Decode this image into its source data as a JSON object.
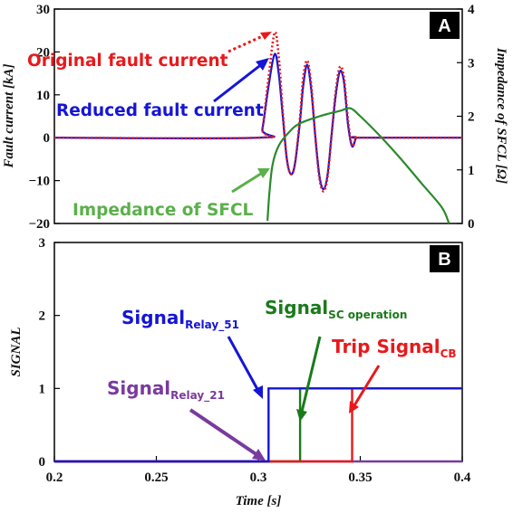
{
  "chart_data": [
    {
      "panel": "A",
      "type": "line",
      "ylabel": "Fault current [kA]",
      "ylabel_right": "Impedance of SFCL [Ω]",
      "xlim": [
        0.2,
        0.4
      ],
      "ylim": [
        -20,
        30
      ],
      "ylim_right": [
        0,
        4
      ],
      "yticks": [
        "30",
        "20",
        "10",
        "0",
        "−10",
        "−20"
      ],
      "yticks_right": [
        "4",
        "3",
        "2",
        "1",
        "0"
      ],
      "annotations": {
        "original": "Original fault current",
        "reduced": "Reduced fault current",
        "impedance": "Impedance of SFCL"
      },
      "series": [
        {
          "name": "Original fault current",
          "color": "#e8191b",
          "style": "dotted",
          "x": [
            0.2,
            0.3,
            0.302,
            0.305,
            0.308,
            0.31,
            0.312,
            0.314,
            0.316,
            0.318,
            0.3205,
            0.322,
            0.324,
            0.326,
            0.328,
            0.33,
            0.332,
            0.334,
            0.336,
            0.338,
            0.34,
            0.342,
            0.344,
            0.346,
            0.348,
            0.35,
            0.4
          ],
          "y": [
            0,
            0,
            2,
            14,
            24.5,
            19,
            6,
            -5,
            -8.5,
            -6,
            5,
            14,
            18,
            12,
            0,
            -9.5,
            -12.5,
            -9,
            1,
            11,
            16.5,
            14,
            4,
            -2,
            0,
            0,
            0
          ]
        },
        {
          "name": "Reduced fault current",
          "color": "#1515d6",
          "style": "solid",
          "x": [
            0.2,
            0.3,
            0.302,
            0.305,
            0.308,
            0.31,
            0.312,
            0.314,
            0.316,
            0.318,
            0.3205,
            0.322,
            0.324,
            0.326,
            0.328,
            0.33,
            0.332,
            0.334,
            0.336,
            0.338,
            0.34,
            0.342,
            0.344,
            0.346,
            0.348,
            0.35,
            0.4
          ],
          "y": [
            0,
            0,
            2,
            12,
            19.5,
            15,
            5,
            -5,
            -8.5,
            -6,
            4,
            12,
            17,
            11,
            0,
            -9,
            -12,
            -8.5,
            1,
            10,
            15.5,
            13,
            3,
            -2,
            0,
            0,
            0
          ]
        },
        {
          "name": "Impedance of SFCL",
          "color": "#2a8a2a",
          "style": "solid",
          "axis": "right",
          "x": [
            0.3045,
            0.3055,
            0.307,
            0.31,
            0.315,
            0.32,
            0.33,
            0.34,
            0.345,
            0.35,
            0.36,
            0.37,
            0.38,
            0.39,
            0.3935
          ],
          "y": [
            0.05,
            0.6,
            1.1,
            1.45,
            1.7,
            1.86,
            2.0,
            2.1,
            2.15,
            2.0,
            1.62,
            1.2,
            0.75,
            0.3,
            0.0
          ]
        }
      ]
    },
    {
      "panel": "B",
      "type": "line",
      "xlabel": "Time [s]",
      "ylabel": "SIGNAL",
      "xlim": [
        0.2,
        0.4
      ],
      "ylim": [
        0,
        3
      ],
      "xticks": [
        "0.2",
        "0.25",
        "0.3",
        "0.35",
        "0.4"
      ],
      "yticks": [
        "3",
        "2",
        "1",
        "0"
      ],
      "annotations": {
        "relay51": {
          "main": "Signal",
          "sub": "Relay_51"
        },
        "sc": {
          "main": "Signal",
          "sub": "SC operation"
        },
        "trip": {
          "main": "Trip Signal",
          "sub": "CB"
        },
        "relay21": {
          "main": "Signal",
          "sub": "Relay_21"
        }
      },
      "series": [
        {
          "name": "Signal Relay_51",
          "color": "#1515d6",
          "x": [
            0.2,
            0.305,
            0.305,
            0.4
          ],
          "y": [
            0,
            0,
            1,
            1
          ]
        },
        {
          "name": "Signal Relay_21",
          "color": "#7a3a9e",
          "x": [
            0.2,
            0.305,
            0.305,
            0.4
          ],
          "y": [
            0,
            0,
            0,
            0
          ]
        },
        {
          "name": "Signal SC operation",
          "color": "#1a7a1a",
          "x": [
            0.2,
            0.3205,
            0.3205,
            0.4
          ],
          "y": [
            0,
            0,
            1,
            1
          ]
        },
        {
          "name": "Trip Signal CB",
          "color": "#e8191b",
          "x": [
            0.2,
            0.346,
            0.346,
            0.4
          ],
          "y": [
            0,
            0,
            1,
            1
          ]
        }
      ]
    }
  ],
  "badges": {
    "a": "A",
    "b": "B"
  },
  "colors": {
    "red": "#e8191b",
    "blue": "#1515d6",
    "green": "#2a8a2a",
    "purple": "#7a3a9e",
    "annot_green": "#5ab04a"
  }
}
